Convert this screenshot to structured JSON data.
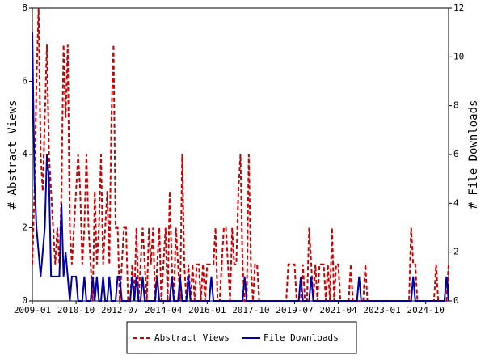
{
  "chart_data": {
    "type": "line",
    "ylabel": "# Abstract Views",
    "y2label": "# File Downloads",
    "categories": [
      "2009-01",
      "2009-02",
      "2009-03",
      "2009-04",
      "2009-05",
      "2009-06",
      "2009-07",
      "2009-08",
      "2009-09",
      "2009-10",
      "2009-11",
      "2009-12",
      "2010-01",
      "2010-02",
      "2010-03",
      "2010-04",
      "2010-05",
      "2010-06",
      "2010-07",
      "2010-08",
      "2010-09",
      "2010-10",
      "2010-11",
      "2010-12",
      "2011-01",
      "2011-02",
      "2011-03",
      "2011-04",
      "2011-05",
      "2011-06",
      "2011-07",
      "2011-08",
      "2011-09",
      "2011-10",
      "2011-11",
      "2011-12",
      "2012-01",
      "2012-02",
      "2012-03",
      "2012-04",
      "2012-05",
      "2012-06",
      "2012-07",
      "2012-08",
      "2012-09",
      "2012-10",
      "2012-11",
      "2012-12",
      "2013-01",
      "2013-02",
      "2013-03",
      "2013-04",
      "2013-05",
      "2013-06",
      "2013-07",
      "2013-08",
      "2013-09",
      "2013-10",
      "2013-11",
      "2013-12",
      "2014-01",
      "2014-02",
      "2014-03",
      "2014-04",
      "2014-05",
      "2014-06",
      "2014-07",
      "2014-08",
      "2014-09",
      "2014-10",
      "2014-11",
      "2014-12",
      "2015-01",
      "2015-02",
      "2015-03",
      "2015-04",
      "2015-05",
      "2015-06",
      "2015-07",
      "2015-08",
      "2015-09",
      "2015-10",
      "2015-11",
      "2015-12",
      "2016-01",
      "2016-02",
      "2016-03",
      "2016-04",
      "2016-05",
      "2016-06",
      "2016-07",
      "2016-08",
      "2016-09",
      "2016-10",
      "2016-11",
      "2016-12",
      "2017-01",
      "2017-02",
      "2017-03",
      "2017-04",
      "2017-05",
      "2017-06",
      "2017-07",
      "2017-08",
      "2017-09",
      "2017-10",
      "2017-11",
      "2017-12",
      "2018-01",
      "2018-02",
      "2018-03",
      "2018-04",
      "2018-05",
      "2018-06",
      "2018-07",
      "2018-08",
      "2018-09",
      "2018-10",
      "2018-11",
      "2018-12",
      "2019-01",
      "2019-02",
      "2019-03",
      "2019-04",
      "2019-05",
      "2019-06",
      "2019-07",
      "2019-08",
      "2019-09",
      "2019-10",
      "2019-11",
      "2019-12",
      "2020-01",
      "2020-02",
      "2020-03",
      "2020-04",
      "2020-05",
      "2020-06",
      "2020-07",
      "2020-08",
      "2020-09",
      "2020-10",
      "2020-11",
      "2020-12",
      "2021-01",
      "2021-02",
      "2021-03",
      "2021-04",
      "2021-05",
      "2021-06",
      "2021-07",
      "2021-08",
      "2021-09",
      "2021-10",
      "2021-11",
      "2021-12",
      "2022-01",
      "2022-02",
      "2022-03",
      "2022-04",
      "2022-05",
      "2022-06",
      "2022-07",
      "2022-08",
      "2022-09",
      "2022-10",
      "2022-11",
      "2022-12",
      "2023-01",
      "2023-02",
      "2023-03",
      "2023-04",
      "2023-05",
      "2023-06",
      "2023-07",
      "2023-08",
      "2023-09",
      "2023-10",
      "2023-11",
      "2023-12",
      "2024-01",
      "2024-02",
      "2024-03",
      "2024-04",
      "2024-05",
      "2024-06",
      "2024-07",
      "2024-08",
      "2024-09",
      "2024-10",
      "2024-11",
      "2024-12",
      "2025-01",
      "2025-02",
      "2025-03",
      "2025-04",
      "2025-05",
      "2025-06",
      "2025-07",
      "2025-08",
      "2025-09"
    ],
    "xticks": [
      "2009-01",
      "2010-10",
      "2012-07",
      "2014-04",
      "2016-01",
      "2017-10",
      "2019-07",
      "2021-04",
      "2023-01",
      "2024-10"
    ],
    "series": [
      {
        "name": "Abstract Views",
        "color": "#cc0000",
        "dashed": true,
        "values": [
          1,
          3,
          6,
          8,
          4,
          3,
          5,
          7,
          4,
          3,
          2,
          1,
          2,
          1,
          3,
          7,
          5,
          7,
          2,
          1,
          2,
          3,
          4,
          3,
          1,
          2,
          4,
          2,
          1,
          0,
          3,
          1,
          2,
          4,
          1,
          2,
          3,
          1,
          5,
          7,
          2,
          2,
          0,
          1,
          2,
          2,
          0,
          0,
          1,
          0,
          2,
          0,
          1,
          2,
          1,
          0,
          2,
          1,
          2,
          0,
          1,
          2,
          0,
          1,
          2,
          0,
          3,
          1,
          0,
          2,
          1,
          0,
          4,
          1,
          0,
          1,
          0,
          1,
          0,
          1,
          1,
          0,
          1,
          0,
          1,
          1,
          1,
          1,
          2,
          0,
          0,
          1,
          2,
          2,
          1,
          0,
          2,
          1,
          1,
          3,
          4,
          1,
          0,
          0,
          4,
          1,
          0,
          1,
          1,
          0,
          0,
          0,
          0,
          0,
          0,
          0,
          0,
          0,
          0,
          0,
          0,
          0,
          0,
          1,
          1,
          1,
          1,
          0,
          0,
          0,
          1,
          0,
          0,
          2,
          1,
          0,
          1,
          0,
          1,
          1,
          1,
          0,
          1,
          0,
          2,
          0,
          1,
          1,
          0,
          0,
          0,
          0,
          0,
          1,
          0,
          0,
          0,
          0,
          0,
          0,
          1,
          0,
          0,
          0,
          0,
          0,
          0,
          0,
          0,
          0,
          0,
          0,
          0,
          0,
          0,
          0,
          0,
          0,
          0,
          0,
          0,
          0,
          2,
          1,
          1,
          0,
          0,
          0,
          0,
          0,
          0,
          0,
          0,
          0,
          1,
          0,
          0,
          0,
          0,
          0,
          1
        ]
      },
      {
        "name": "File Downloads",
        "color": "#0000aa",
        "axis": "y2",
        "values": [
          11,
          5,
          3,
          2,
          1,
          2,
          3,
          6,
          5,
          1,
          1,
          1,
          1,
          1,
          4,
          1,
          2,
          1,
          0,
          1,
          1,
          1,
          0,
          0,
          0,
          1,
          0,
          0,
          0,
          1,
          0,
          1,
          0,
          0,
          1,
          0,
          0,
          1,
          0,
          0,
          0,
          1,
          1,
          0,
          0,
          0,
          0,
          0,
          1,
          0,
          1,
          0,
          0,
          1,
          0,
          0,
          0,
          0,
          0,
          0,
          1,
          0,
          0,
          0,
          0,
          0,
          0,
          1,
          0,
          0,
          0,
          1,
          0,
          0,
          0,
          1,
          0,
          0,
          0,
          0,
          0,
          0,
          0,
          0,
          0,
          0,
          1,
          0,
          0,
          0,
          0,
          0,
          0,
          0,
          0,
          0,
          0,
          0,
          0,
          0,
          0,
          0,
          1,
          0,
          0,
          0,
          0,
          0,
          0,
          0,
          0,
          0,
          0,
          0,
          0,
          0,
          0,
          0,
          0,
          0,
          0,
          0,
          0,
          0,
          0,
          0,
          0,
          0,
          0,
          1,
          0,
          0,
          0,
          0,
          1,
          0,
          0,
          0,
          0,
          0,
          0,
          0,
          0,
          0,
          0,
          0,
          0,
          0,
          0,
          0,
          0,
          0,
          0,
          0,
          0,
          0,
          0,
          1,
          0,
          0,
          0,
          0,
          0,
          0,
          0,
          0,
          0,
          0,
          0,
          0,
          0,
          0,
          0,
          0,
          0,
          0,
          0,
          0,
          0,
          0,
          0,
          0,
          0,
          1,
          0,
          0,
          0,
          0,
          0,
          0,
          0,
          0,
          0,
          0,
          0,
          0,
          0,
          0,
          0,
          1,
          0
        ]
      }
    ],
    "ylim": [
      0,
      8
    ],
    "yticks": [
      0,
      2,
      4,
      6,
      8
    ],
    "y2lim": [
      0,
      12
    ],
    "y2ticks": [
      0,
      2,
      4,
      6,
      8,
      10,
      12
    ]
  }
}
